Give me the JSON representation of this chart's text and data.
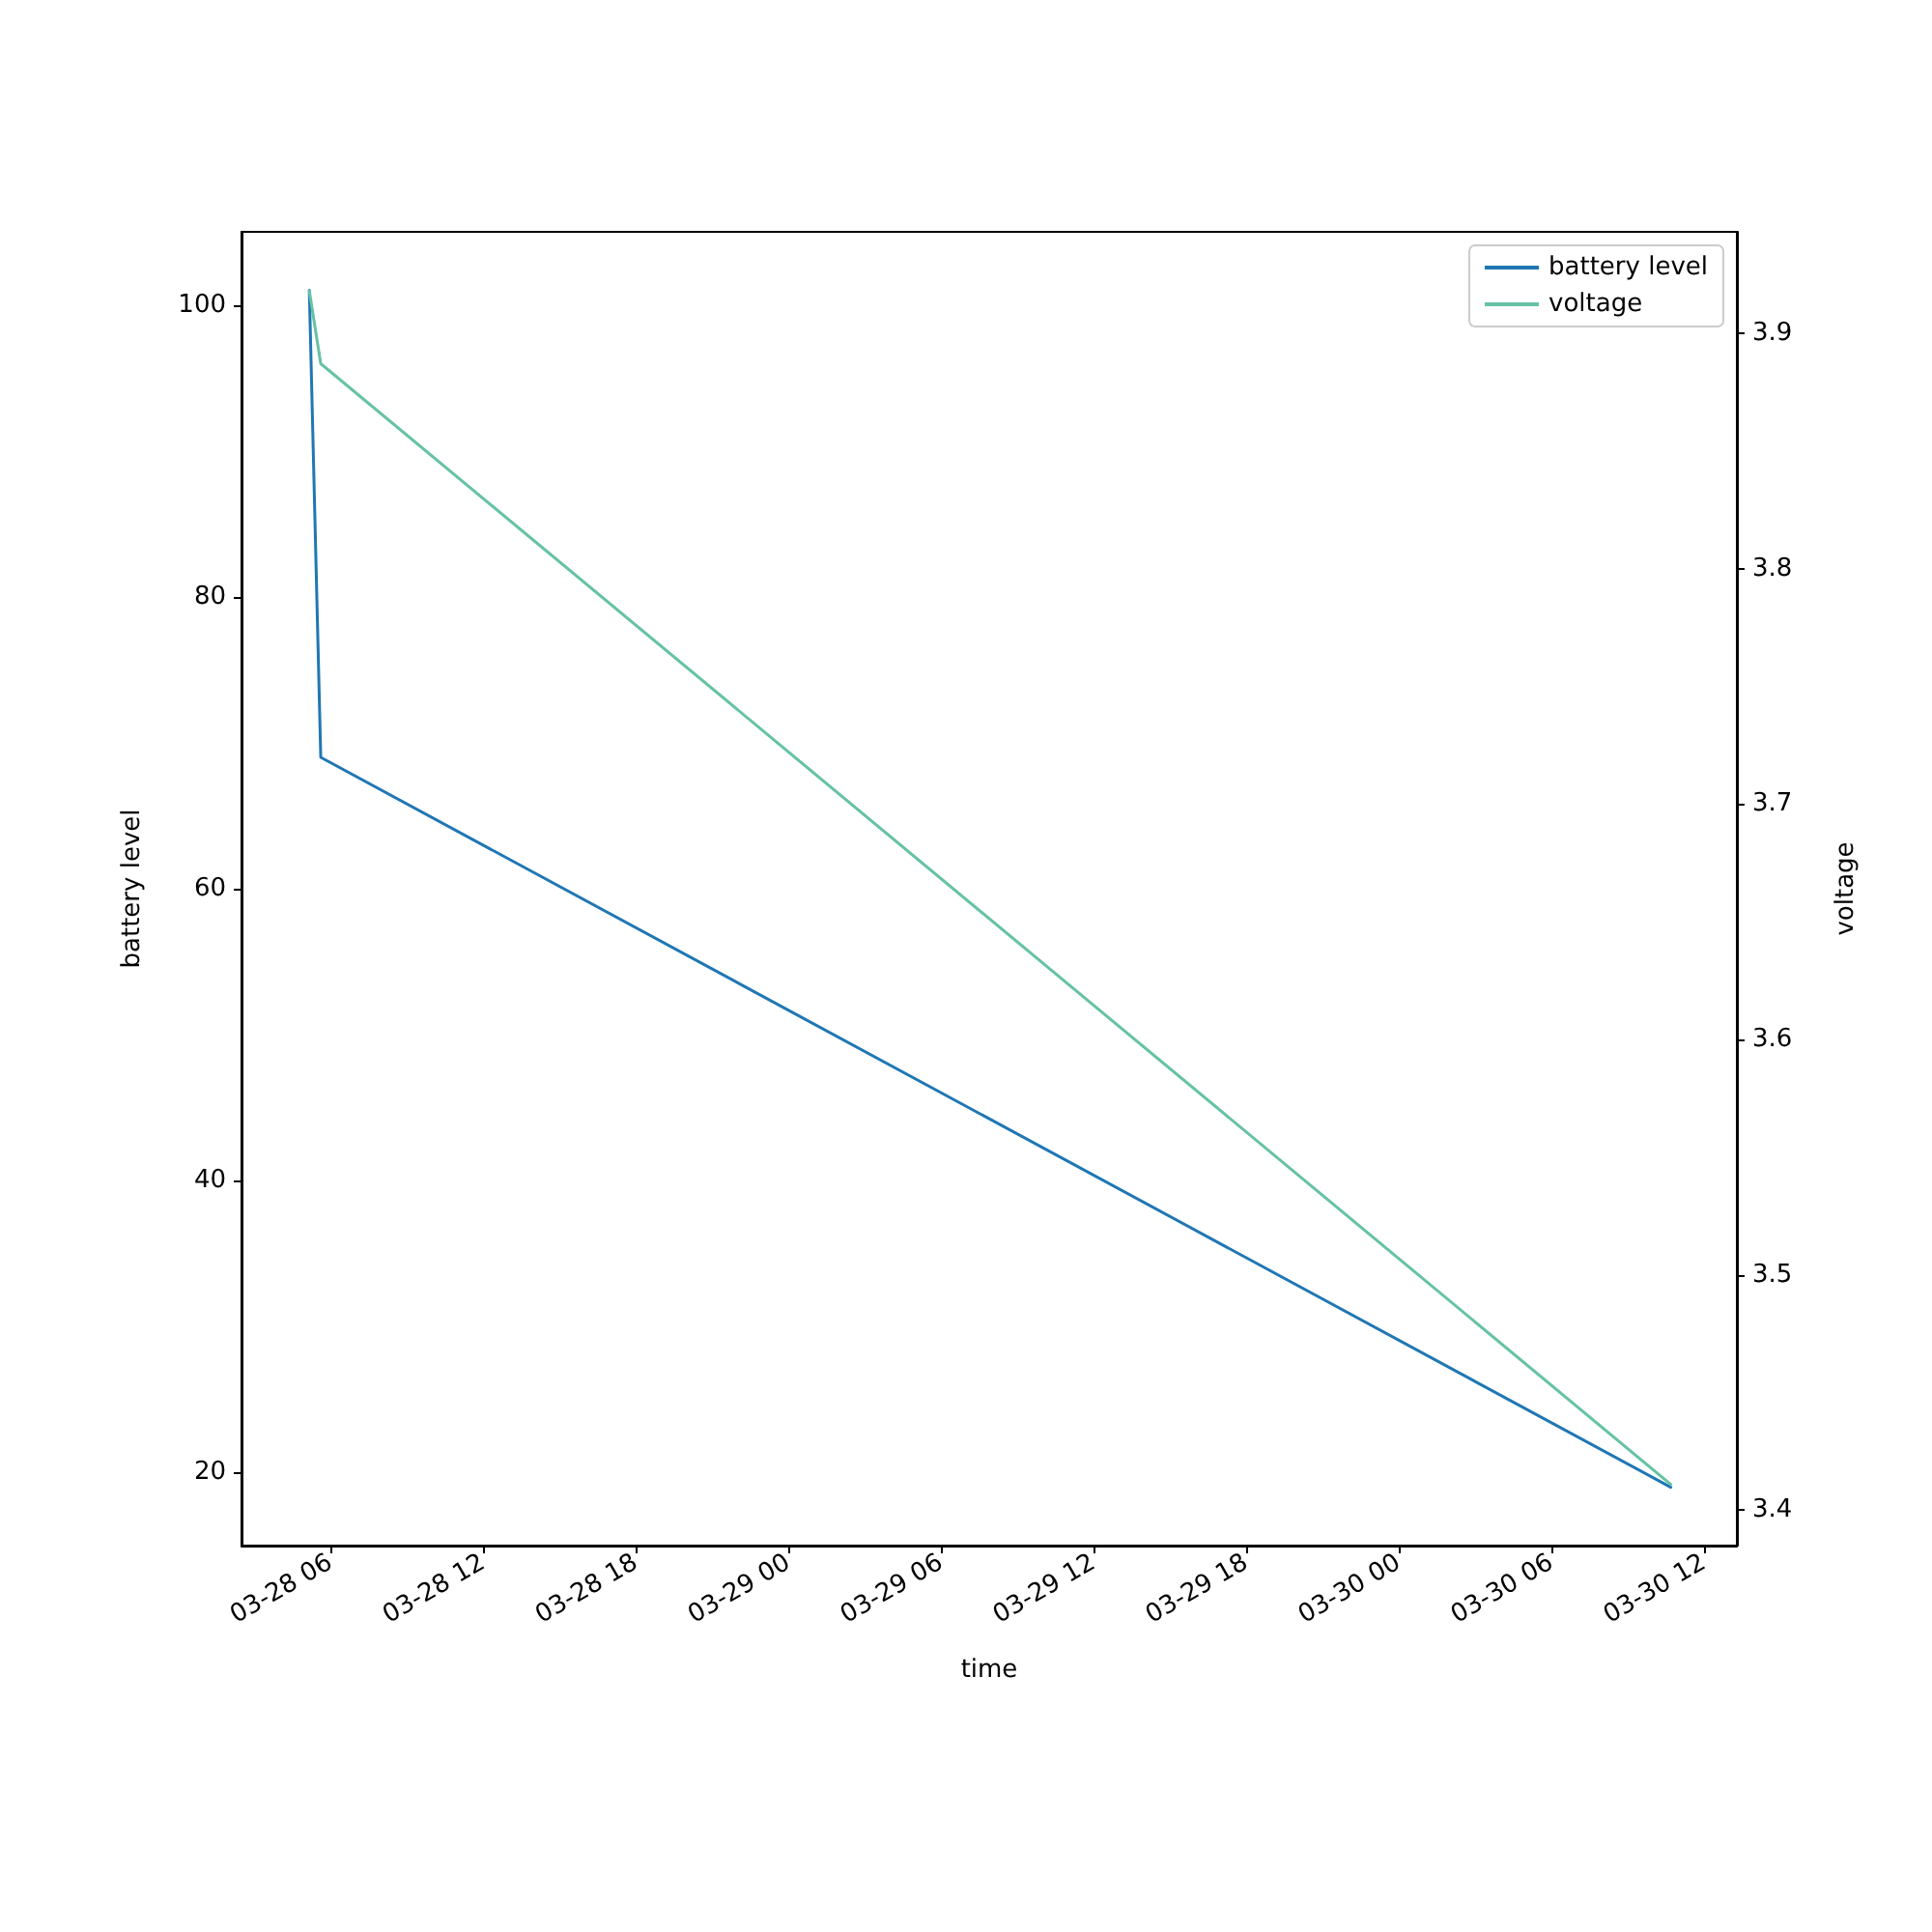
{
  "chart_data": {
    "type": "line",
    "xlabel": "time",
    "ylabel": "battery level",
    "y2label": "voltage",
    "xlim": [
      "--03-28T02:30",
      "--03-30T13:18"
    ],
    "xticks": [
      {
        "value": "--03-28T06:00",
        "label": "03-28 06"
      },
      {
        "value": "--03-28T12:00",
        "label": "03-28 12"
      },
      {
        "value": "--03-28T18:00",
        "label": "03-28 18"
      },
      {
        "value": "--03-29T00:00",
        "label": "03-29 00"
      },
      {
        "value": "--03-29T06:00",
        "label": "03-29 06"
      },
      {
        "value": "--03-29T12:00",
        "label": "03-29 12"
      },
      {
        "value": "--03-29T18:00",
        "label": "03-29 18"
      },
      {
        "value": "--03-30T00:00",
        "label": "03-30 00"
      },
      {
        "value": "--03-30T06:00",
        "label": "03-30 06"
      },
      {
        "value": "--03-30T12:00",
        "label": "03-30 12"
      }
    ],
    "ylim": [
      15,
      105
    ],
    "yticks": [
      20,
      40,
      60,
      80,
      100
    ],
    "y2lim": [
      3.385,
      3.943
    ],
    "y2ticks": [
      3.4,
      3.5,
      3.6,
      3.7,
      3.8,
      3.9
    ],
    "series": [
      {
        "name": "battery level",
        "color": "#1f77b4",
        "x": [
          "--03-28T05:10",
          "--03-28T05:37",
          "--03-30T10:42"
        ],
        "values": [
          101,
          69,
          19
        ]
      },
      {
        "name": "voltage",
        "color": "#66c2a5",
        "axis": "y2",
        "x": [
          "--03-28T05:10",
          "--03-28T05:37",
          "--03-30T10:42"
        ],
        "values": [
          3.918,
          3.887,
          3.411
        ]
      }
    ],
    "legend": "top right",
    "grid": false,
    "marker": "none",
    "line_style": "solid"
  }
}
